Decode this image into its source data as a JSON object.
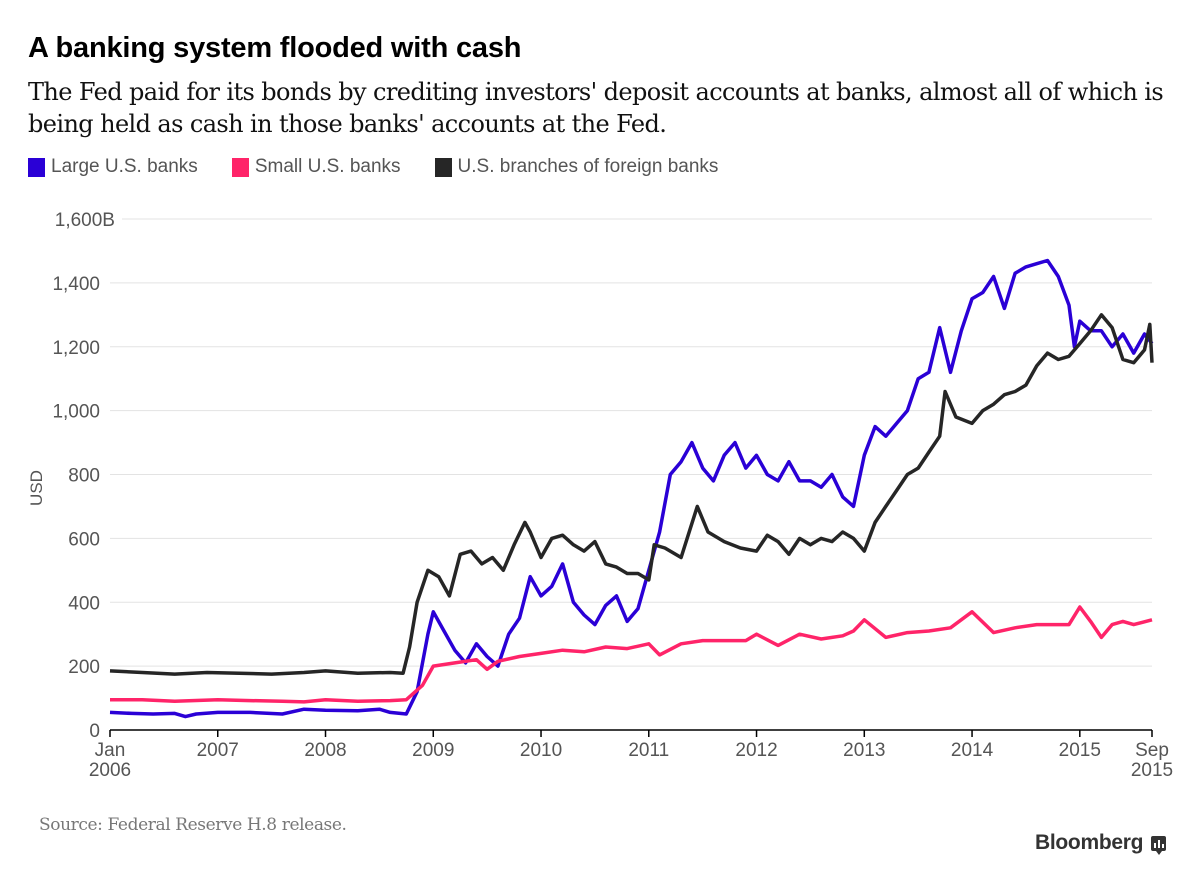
{
  "header": {
    "title": "A banking system flooded with cash",
    "subtitle": "The Fed paid for its bonds by crediting investors' deposit accounts at banks, almost all of which is being held as cash in those banks' accounts at the Fed."
  },
  "legend": [
    {
      "label": "Large U.S. banks",
      "color": "#2a00d6"
    },
    {
      "label": "Small U.S. banks",
      "color": "#ff2469"
    },
    {
      "label": "U.S. branches of foreign banks",
      "color": "#262626"
    }
  ],
  "footer": {
    "source": "Source: Federal Reserve H.8 release.",
    "brand": "Bloomberg",
    "brand_icon": "bar-chart-bubble-icon"
  },
  "chart_data": {
    "type": "line",
    "title": "A banking system flooded with cash",
    "xlabel": "",
    "ylabel": "USD",
    "ylim": [
      0,
      1600
    ],
    "xlim": [
      2006.0,
      2015.67
    ],
    "grid": true,
    "legend_position": "top-left",
    "y_ticks": [
      {
        "value": 0,
        "label": "0"
      },
      {
        "value": 200,
        "label": "200"
      },
      {
        "value": 400,
        "label": "400"
      },
      {
        "value": 600,
        "label": "600"
      },
      {
        "value": 800,
        "label": "800"
      },
      {
        "value": 1000,
        "label": "1,000"
      },
      {
        "value": 1200,
        "label": "1,200"
      },
      {
        "value": 1400,
        "label": "1,400"
      },
      {
        "value": 1600,
        "label": "1,600B"
      }
    ],
    "x_ticks": [
      {
        "value": 2006.0,
        "label": "Jan",
        "label2": "2006"
      },
      {
        "value": 2007.0,
        "label": "2007",
        "label2": ""
      },
      {
        "value": 2008.0,
        "label": "2008",
        "label2": ""
      },
      {
        "value": 2009.0,
        "label": "2009",
        "label2": ""
      },
      {
        "value": 2010.0,
        "label": "2010",
        "label2": ""
      },
      {
        "value": 2011.0,
        "label": "2011",
        "label2": ""
      },
      {
        "value": 2012.0,
        "label": "2012",
        "label2": ""
      },
      {
        "value": 2013.0,
        "label": "2013",
        "label2": ""
      },
      {
        "value": 2014.0,
        "label": "2014",
        "label2": ""
      },
      {
        "value": 2015.0,
        "label": "2015",
        "label2": ""
      },
      {
        "value": 2015.67,
        "label": "Sep",
        "label2": "2015"
      }
    ],
    "series": [
      {
        "name": "Large U.S. banks",
        "color": "#2a00d6",
        "points": [
          [
            2006.0,
            55
          ],
          [
            2006.2,
            52
          ],
          [
            2006.4,
            50
          ],
          [
            2006.6,
            52
          ],
          [
            2006.7,
            42
          ],
          [
            2006.8,
            50
          ],
          [
            2007.0,
            55
          ],
          [
            2007.3,
            55
          ],
          [
            2007.6,
            50
          ],
          [
            2007.8,
            65
          ],
          [
            2008.0,
            62
          ],
          [
            2008.3,
            60
          ],
          [
            2008.5,
            65
          ],
          [
            2008.6,
            55
          ],
          [
            2008.75,
            50
          ],
          [
            2008.85,
            120
          ],
          [
            2008.95,
            300
          ],
          [
            2009.0,
            370
          ],
          [
            2009.1,
            310
          ],
          [
            2009.2,
            250
          ],
          [
            2009.3,
            210
          ],
          [
            2009.4,
            270
          ],
          [
            2009.5,
            230
          ],
          [
            2009.6,
            200
          ],
          [
            2009.7,
            300
          ],
          [
            2009.8,
            350
          ],
          [
            2009.9,
            480
          ],
          [
            2010.0,
            420
          ],
          [
            2010.1,
            450
          ],
          [
            2010.2,
            520
          ],
          [
            2010.3,
            400
          ],
          [
            2010.4,
            360
          ],
          [
            2010.5,
            330
          ],
          [
            2010.6,
            390
          ],
          [
            2010.7,
            420
          ],
          [
            2010.8,
            340
          ],
          [
            2010.9,
            380
          ],
          [
            2011.0,
            500
          ],
          [
            2011.1,
            620
          ],
          [
            2011.2,
            800
          ],
          [
            2011.3,
            840
          ],
          [
            2011.4,
            900
          ],
          [
            2011.5,
            820
          ],
          [
            2011.6,
            780
          ],
          [
            2011.7,
            860
          ],
          [
            2011.8,
            900
          ],
          [
            2011.9,
            820
          ],
          [
            2012.0,
            860
          ],
          [
            2012.1,
            800
          ],
          [
            2012.2,
            780
          ],
          [
            2012.3,
            840
          ],
          [
            2012.4,
            780
          ],
          [
            2012.5,
            780
          ],
          [
            2012.6,
            760
          ],
          [
            2012.7,
            800
          ],
          [
            2012.8,
            730
          ],
          [
            2012.9,
            700
          ],
          [
            2013.0,
            860
          ],
          [
            2013.1,
            950
          ],
          [
            2013.2,
            920
          ],
          [
            2013.3,
            960
          ],
          [
            2013.4,
            1000
          ],
          [
            2013.5,
            1100
          ],
          [
            2013.6,
            1120
          ],
          [
            2013.7,
            1260
          ],
          [
            2013.8,
            1120
          ],
          [
            2013.9,
            1250
          ],
          [
            2014.0,
            1350
          ],
          [
            2014.1,
            1370
          ],
          [
            2014.2,
            1420
          ],
          [
            2014.3,
            1320
          ],
          [
            2014.4,
            1430
          ],
          [
            2014.5,
            1450
          ],
          [
            2014.6,
            1460
          ],
          [
            2014.7,
            1470
          ],
          [
            2014.8,
            1420
          ],
          [
            2014.9,
            1330
          ],
          [
            2014.95,
            1200
          ],
          [
            2015.0,
            1280
          ],
          [
            2015.1,
            1250
          ],
          [
            2015.2,
            1250
          ],
          [
            2015.3,
            1200
          ],
          [
            2015.4,
            1240
          ],
          [
            2015.5,
            1180
          ],
          [
            2015.6,
            1240
          ],
          [
            2015.67,
            1210
          ]
        ]
      },
      {
        "name": "Small U.S. banks",
        "color": "#ff2469",
        "points": [
          [
            2006.0,
            95
          ],
          [
            2006.3,
            95
          ],
          [
            2006.6,
            90
          ],
          [
            2007.0,
            95
          ],
          [
            2007.3,
            92
          ],
          [
            2007.6,
            90
          ],
          [
            2007.8,
            88
          ],
          [
            2008.0,
            95
          ],
          [
            2008.3,
            90
          ],
          [
            2008.6,
            92
          ],
          [
            2008.75,
            95
          ],
          [
            2008.9,
            140
          ],
          [
            2009.0,
            200
          ],
          [
            2009.2,
            210
          ],
          [
            2009.4,
            220
          ],
          [
            2009.5,
            190
          ],
          [
            2009.6,
            215
          ],
          [
            2009.8,
            230
          ],
          [
            2010.0,
            240
          ],
          [
            2010.2,
            250
          ],
          [
            2010.4,
            245
          ],
          [
            2010.6,
            260
          ],
          [
            2010.8,
            255
          ],
          [
            2011.0,
            270
          ],
          [
            2011.1,
            235
          ],
          [
            2011.3,
            270
          ],
          [
            2011.5,
            280
          ],
          [
            2011.7,
            280
          ],
          [
            2011.9,
            280
          ],
          [
            2012.0,
            300
          ],
          [
            2012.2,
            265
          ],
          [
            2012.4,
            300
          ],
          [
            2012.6,
            285
          ],
          [
            2012.8,
            295
          ],
          [
            2012.9,
            310
          ],
          [
            2013.0,
            345
          ],
          [
            2013.2,
            290
          ],
          [
            2013.4,
            305
          ],
          [
            2013.6,
            310
          ],
          [
            2013.8,
            320
          ],
          [
            2014.0,
            370
          ],
          [
            2014.2,
            305
          ],
          [
            2014.4,
            320
          ],
          [
            2014.6,
            330
          ],
          [
            2014.8,
            330
          ],
          [
            2014.9,
            330
          ],
          [
            2015.0,
            385
          ],
          [
            2015.1,
            340
          ],
          [
            2015.2,
            290
          ],
          [
            2015.3,
            330
          ],
          [
            2015.4,
            340
          ],
          [
            2015.5,
            330
          ],
          [
            2015.67,
            345
          ]
        ]
      },
      {
        "name": "U.S. branches of foreign banks",
        "color": "#262626",
        "points": [
          [
            2006.0,
            185
          ],
          [
            2006.3,
            180
          ],
          [
            2006.6,
            175
          ],
          [
            2006.9,
            180
          ],
          [
            2007.2,
            178
          ],
          [
            2007.5,
            175
          ],
          [
            2007.8,
            180
          ],
          [
            2008.0,
            185
          ],
          [
            2008.3,
            178
          ],
          [
            2008.6,
            180
          ],
          [
            2008.72,
            178
          ],
          [
            2008.78,
            260
          ],
          [
            2008.85,
            400
          ],
          [
            2008.95,
            500
          ],
          [
            2009.05,
            480
          ],
          [
            2009.15,
            420
          ],
          [
            2009.25,
            550
          ],
          [
            2009.35,
            560
          ],
          [
            2009.45,
            520
          ],
          [
            2009.55,
            540
          ],
          [
            2009.65,
            500
          ],
          [
            2009.75,
            580
          ],
          [
            2009.85,
            650
          ],
          [
            2009.9,
            620
          ],
          [
            2010.0,
            540
          ],
          [
            2010.1,
            600
          ],
          [
            2010.2,
            610
          ],
          [
            2010.3,
            580
          ],
          [
            2010.4,
            560
          ],
          [
            2010.5,
            590
          ],
          [
            2010.6,
            520
          ],
          [
            2010.7,
            510
          ],
          [
            2010.8,
            490
          ],
          [
            2010.9,
            490
          ],
          [
            2011.0,
            470
          ],
          [
            2011.05,
            580
          ],
          [
            2011.15,
            570
          ],
          [
            2011.3,
            540
          ],
          [
            2011.45,
            700
          ],
          [
            2011.55,
            620
          ],
          [
            2011.7,
            590
          ],
          [
            2011.85,
            570
          ],
          [
            2012.0,
            560
          ],
          [
            2012.1,
            610
          ],
          [
            2012.2,
            590
          ],
          [
            2012.3,
            550
          ],
          [
            2012.4,
            600
          ],
          [
            2012.5,
            580
          ],
          [
            2012.6,
            600
          ],
          [
            2012.7,
            590
          ],
          [
            2012.8,
            620
          ],
          [
            2012.9,
            600
          ],
          [
            2013.0,
            560
          ],
          [
            2013.1,
            650
          ],
          [
            2013.2,
            700
          ],
          [
            2013.3,
            750
          ],
          [
            2013.4,
            800
          ],
          [
            2013.5,
            820
          ],
          [
            2013.6,
            870
          ],
          [
            2013.7,
            920
          ],
          [
            2013.75,
            1060
          ],
          [
            2013.85,
            980
          ],
          [
            2014.0,
            960
          ],
          [
            2014.1,
            1000
          ],
          [
            2014.2,
            1020
          ],
          [
            2014.3,
            1050
          ],
          [
            2014.4,
            1060
          ],
          [
            2014.5,
            1080
          ],
          [
            2014.6,
            1140
          ],
          [
            2014.7,
            1180
          ],
          [
            2014.8,
            1160
          ],
          [
            2014.9,
            1170
          ],
          [
            2015.0,
            1210
          ],
          [
            2015.1,
            1250
          ],
          [
            2015.2,
            1300
          ],
          [
            2015.3,
            1260
          ],
          [
            2015.4,
            1160
          ],
          [
            2015.5,
            1150
          ],
          [
            2015.6,
            1190
          ],
          [
            2015.65,
            1270
          ],
          [
            2015.67,
            1150
          ]
        ]
      }
    ]
  }
}
